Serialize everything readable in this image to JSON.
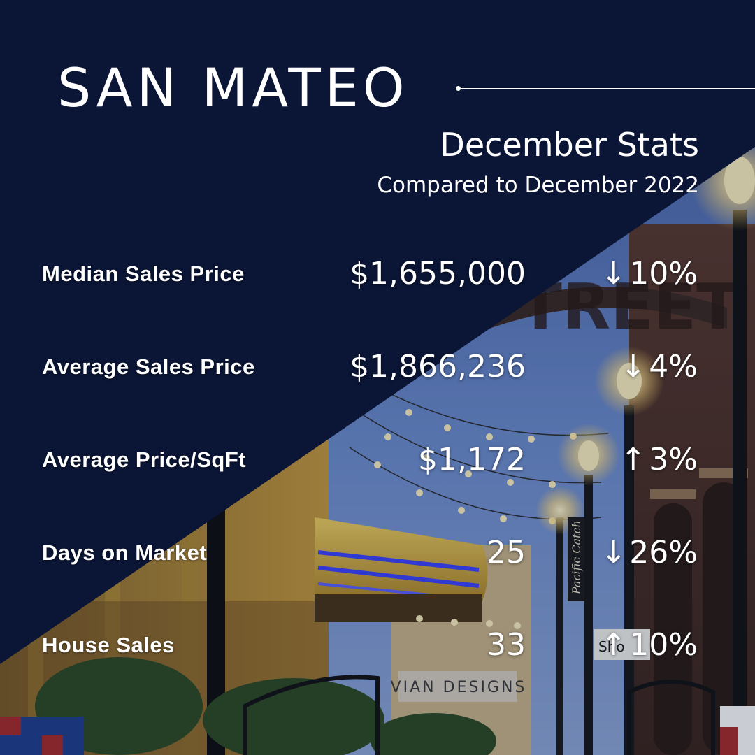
{
  "header": {
    "city": "SAN MATEO",
    "subtitle": "December Stats",
    "comparison": "Compared to December 2022"
  },
  "stats": [
    {
      "label": "Median Sales Price",
      "value": "$1,655,000",
      "direction": "down",
      "arrow": "↓",
      "change": "10%"
    },
    {
      "label": "Average Sales Price",
      "value": "$1,866,236",
      "direction": "down",
      "arrow": "↓",
      "change": "4%"
    },
    {
      "label": "Average Price/SqFt",
      "value": "$1,172",
      "direction": "up",
      "arrow": "↑",
      "change": "3%"
    },
    {
      "label": "Days on Market",
      "value": "25",
      "direction": "down",
      "arrow": "↓",
      "change": "26%"
    },
    {
      "label": "House Sales",
      "value": "33",
      "direction": "up",
      "arrow": "↑",
      "change": "10%"
    }
  ],
  "photo_signage": {
    "arch_text": "TREET",
    "sign_left": "Pacific Catch",
    "storefront": "VIAN DESIGNS",
    "shop_fragment": "Sho"
  },
  "colors": {
    "navy": "#0b1535",
    "text": "#ffffff",
    "sky": "#5a78b8",
    "neon_blue": "#3c44ff",
    "marquee_yellow": "#e2bf4a",
    "lamp_glow": "#ffe9a8"
  }
}
